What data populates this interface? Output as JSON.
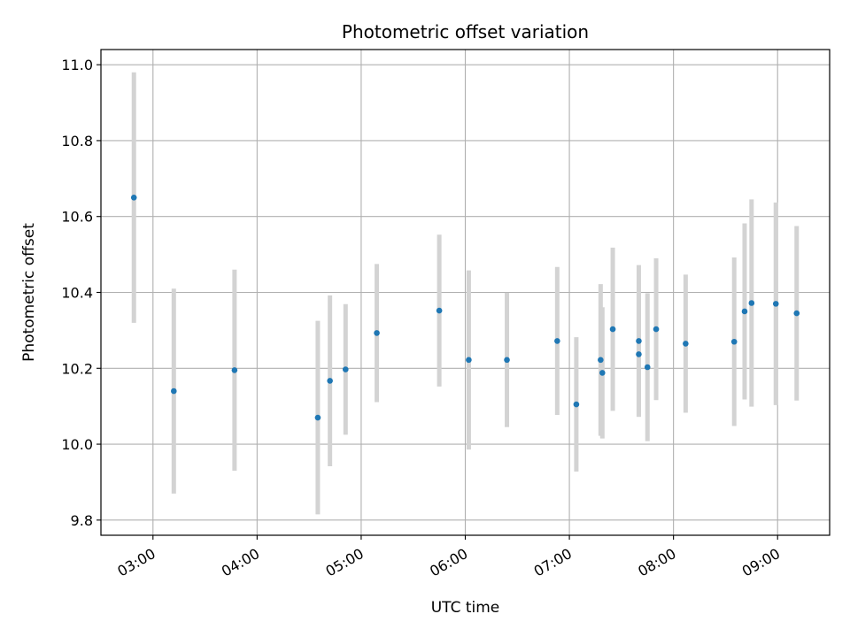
{
  "chart_data": {
    "type": "scatter",
    "title": "Photometric offset variation",
    "xlabel": "UTC time",
    "ylabel": "Photometric offset",
    "grid": true,
    "xlim": [
      "02:30",
      "09:30"
    ],
    "ylim": [
      9.76,
      11.04
    ],
    "x_ticks": [
      "03:00",
      "04:00",
      "05:00",
      "06:00",
      "07:00",
      "08:00",
      "09:00"
    ],
    "y_ticks": [
      9.8,
      10.0,
      10.2,
      10.4,
      10.6,
      10.8,
      11.0
    ],
    "y_tick_labels": [
      "9.8",
      "10.0",
      "10.2",
      "10.4",
      "10.6",
      "10.8",
      "11.0"
    ],
    "marker_color": "#1f77b4",
    "errorbar_color": "#d3d3d3",
    "points": [
      {
        "x": "02:49",
        "y": 10.65,
        "err": 0.33
      },
      {
        "x": "03:12",
        "y": 10.14,
        "err": 0.27
      },
      {
        "x": "03:47",
        "y": 10.195,
        "err": 0.265
      },
      {
        "x": "04:35",
        "y": 10.07,
        "err": 0.255
      },
      {
        "x": "04:42",
        "y": 10.167,
        "err": 0.225
      },
      {
        "x": "04:51",
        "y": 10.197,
        "err": 0.172
      },
      {
        "x": "05:09",
        "y": 10.293,
        "err": 0.182
      },
      {
        "x": "05:45",
        "y": 10.352,
        "err": 0.2
      },
      {
        "x": "06:02",
        "y": 10.222,
        "err": 0.236
      },
      {
        "x": "06:24",
        "y": 10.222,
        "err": 0.177
      },
      {
        "x": "06:53",
        "y": 10.272,
        "err": 0.195
      },
      {
        "x": "07:04",
        "y": 10.105,
        "err": 0.177
      },
      {
        "x": "07:18",
        "y": 10.222,
        "err": 0.2
      },
      {
        "x": "07:19",
        "y": 10.188,
        "err": 0.173
      },
      {
        "x": "07:25",
        "y": 10.303,
        "err": 0.215
      },
      {
        "x": "07:40",
        "y": 10.272,
        "err": 0.2
      },
      {
        "x": "07:40",
        "y": 10.237,
        "err": 0.165
      },
      {
        "x": "07:45",
        "y": 10.203,
        "err": 0.195
      },
      {
        "x": "07:50",
        "y": 10.303,
        "err": 0.187
      },
      {
        "x": "08:07",
        "y": 10.265,
        "err": 0.182
      },
      {
        "x": "08:35",
        "y": 10.27,
        "err": 0.222
      },
      {
        "x": "08:41",
        "y": 10.35,
        "err": 0.232
      },
      {
        "x": "08:45",
        "y": 10.372,
        "err": 0.273
      },
      {
        "x": "08:59",
        "y": 10.37,
        "err": 0.267
      },
      {
        "x": "09:11",
        "y": 10.345,
        "err": 0.23
      }
    ]
  }
}
